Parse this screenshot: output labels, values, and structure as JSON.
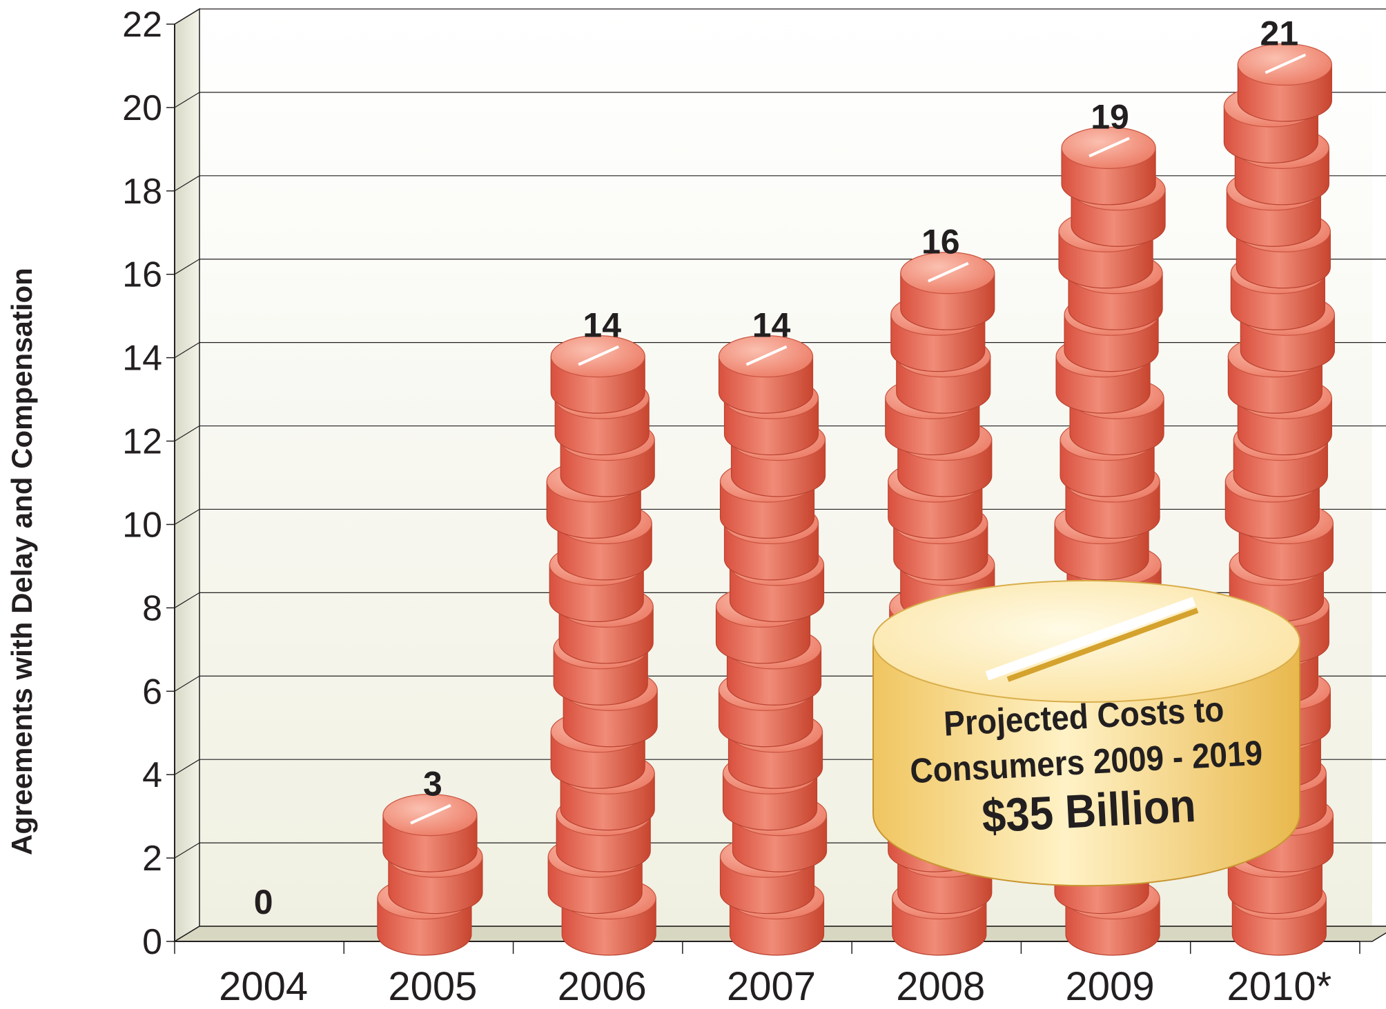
{
  "chart_data": {
    "type": "bar",
    "ylabel": "Agreements with Delay and Compensation",
    "xlabel": "",
    "categories": [
      "2004",
      "2005",
      "2006",
      "2007",
      "2008",
      "2009",
      "2010*"
    ],
    "values": [
      0,
      3,
      14,
      14,
      16,
      19,
      21
    ],
    "value_labels": [
      "0",
      "3",
      "14",
      "14",
      "16",
      "19",
      "21"
    ],
    "ylim": [
      0,
      22
    ],
    "yticks": [
      "0",
      "2",
      "4",
      "6",
      "8",
      "10",
      "12",
      "14",
      "16",
      "18",
      "20",
      "22"
    ],
    "grid": true,
    "mark_style": "stacked pills",
    "colors": {
      "pill": "#e8735f",
      "pill_top": "#f5a08e",
      "callout": "#fbe39a",
      "callout_stripe": "#d9a52a"
    },
    "annotation": {
      "line1": "Projected Costs to",
      "line2": "Consumers 2009 - 2019",
      "line3": "$35 Billion"
    }
  }
}
